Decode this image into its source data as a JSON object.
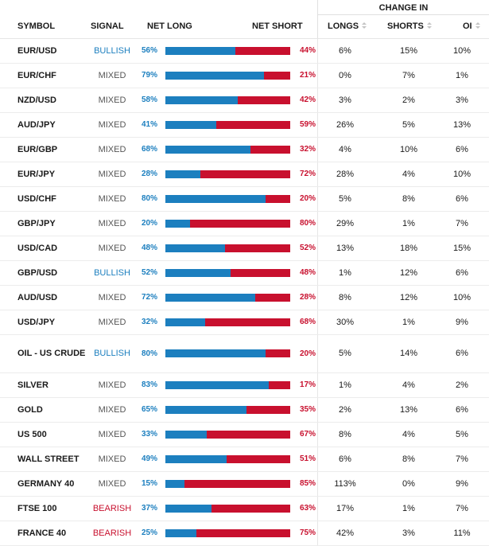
{
  "header": {
    "change_in": "CHANGE IN",
    "symbol": "SYMBOL",
    "signal": "SIGNAL",
    "net_long": "NET LONG",
    "net_short": "NET SHORT",
    "longs": "LONGS",
    "shorts": "SHORTS",
    "oi": "OI"
  },
  "colors": {
    "long": "#1c7fbf",
    "short": "#c8102e",
    "bullish": "#1c7fbf",
    "bearish": "#c8102e",
    "mixed": "#555555"
  },
  "rows": [
    {
      "symbol": "EUR/USD",
      "signal": "BULLISH",
      "net_long": "56%",
      "net_short": "44%",
      "long_fraction": 0.56,
      "longs": "6%",
      "shorts": "15%",
      "oi": "10%"
    },
    {
      "symbol": "EUR/CHF",
      "signal": "MIXED",
      "net_long": "79%",
      "net_short": "21%",
      "long_fraction": 0.79,
      "longs": "0%",
      "shorts": "7%",
      "oi": "1%"
    },
    {
      "symbol": "NZD/USD",
      "signal": "MIXED",
      "net_long": "58%",
      "net_short": "42%",
      "long_fraction": 0.58,
      "longs": "3%",
      "shorts": "2%",
      "oi": "3%"
    },
    {
      "symbol": "AUD/JPY",
      "signal": "MIXED",
      "net_long": "41%",
      "net_short": "59%",
      "long_fraction": 0.41,
      "longs": "26%",
      "shorts": "5%",
      "oi": "13%"
    },
    {
      "symbol": "EUR/GBP",
      "signal": "MIXED",
      "net_long": "68%",
      "net_short": "32%",
      "long_fraction": 0.68,
      "longs": "4%",
      "shorts": "10%",
      "oi": "6%"
    },
    {
      "symbol": "EUR/JPY",
      "signal": "MIXED",
      "net_long": "28%",
      "net_short": "72%",
      "long_fraction": 0.28,
      "longs": "28%",
      "shorts": "4%",
      "oi": "10%"
    },
    {
      "symbol": "USD/CHF",
      "signal": "MIXED",
      "net_long": "80%",
      "net_short": "20%",
      "long_fraction": 0.8,
      "longs": "5%",
      "shorts": "8%",
      "oi": "6%"
    },
    {
      "symbol": "GBP/JPY",
      "signal": "MIXED",
      "net_long": "20%",
      "net_short": "80%",
      "long_fraction": 0.2,
      "longs": "29%",
      "shorts": "1%",
      "oi": "7%"
    },
    {
      "symbol": "USD/CAD",
      "signal": "MIXED",
      "net_long": "48%",
      "net_short": "52%",
      "long_fraction": 0.48,
      "longs": "13%",
      "shorts": "18%",
      "oi": "15%"
    },
    {
      "symbol": "GBP/USD",
      "signal": "BULLISH",
      "net_long": "52%",
      "net_short": "48%",
      "long_fraction": 0.52,
      "longs": "1%",
      "shorts": "12%",
      "oi": "6%"
    },
    {
      "symbol": "AUD/USD",
      "signal": "MIXED",
      "net_long": "72%",
      "net_short": "28%",
      "long_fraction": 0.72,
      "longs": "8%",
      "shorts": "12%",
      "oi": "10%"
    },
    {
      "symbol": "USD/JPY",
      "signal": "MIXED",
      "net_long": "32%",
      "net_short": "68%",
      "long_fraction": 0.32,
      "longs": "30%",
      "shorts": "1%",
      "oi": "9%"
    },
    {
      "symbol": "OIL - US CRUDE",
      "signal": "BULLISH",
      "net_long": "80%",
      "net_short": "20%",
      "long_fraction": 0.8,
      "longs": "5%",
      "shorts": "14%",
      "oi": "6%"
    },
    {
      "symbol": "SILVER",
      "signal": "MIXED",
      "net_long": "83%",
      "net_short": "17%",
      "long_fraction": 0.83,
      "longs": "1%",
      "shorts": "4%",
      "oi": "2%"
    },
    {
      "symbol": "GOLD",
      "signal": "MIXED",
      "net_long": "65%",
      "net_short": "35%",
      "long_fraction": 0.65,
      "longs": "2%",
      "shorts": "13%",
      "oi": "6%"
    },
    {
      "symbol": "US 500",
      "signal": "MIXED",
      "net_long": "33%",
      "net_short": "67%",
      "long_fraction": 0.33,
      "longs": "8%",
      "shorts": "4%",
      "oi": "5%"
    },
    {
      "symbol": "WALL STREET",
      "signal": "MIXED",
      "net_long": "49%",
      "net_short": "51%",
      "long_fraction": 0.49,
      "longs": "6%",
      "shorts": "8%",
      "oi": "7%"
    },
    {
      "symbol": "GERMANY 40",
      "signal": "MIXED",
      "net_long": "15%",
      "net_short": "85%",
      "long_fraction": 0.15,
      "longs": "113%",
      "shorts": "0%",
      "oi": "9%"
    },
    {
      "symbol": "FTSE 100",
      "signal": "BEARISH",
      "net_long": "37%",
      "net_short": "63%",
      "long_fraction": 0.37,
      "longs": "17%",
      "shorts": "1%",
      "oi": "7%"
    },
    {
      "symbol": "FRANCE 40",
      "signal": "BEARISH",
      "net_long": "25%",
      "net_short": "75%",
      "long_fraction": 0.25,
      "longs": "42%",
      "shorts": "3%",
      "oi": "11%"
    }
  ]
}
